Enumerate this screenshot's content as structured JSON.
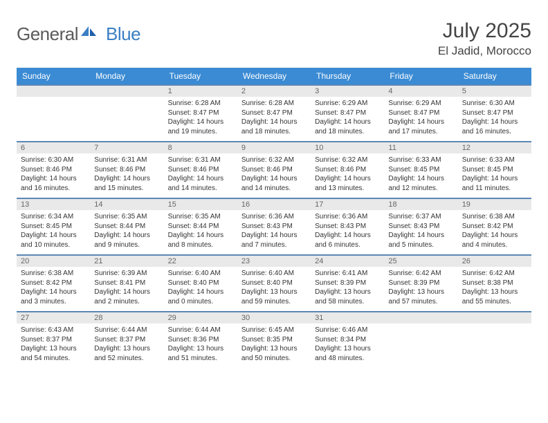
{
  "brand": {
    "word1": "General",
    "word2": "Blue"
  },
  "title": "July 2025",
  "location": "El Jadid, Morocco",
  "colors": {
    "header_bg": "#3b8bd4",
    "header_text": "#ffffff",
    "row_border": "#5b87b5",
    "daynum_bg": "#e9e9e9",
    "daynum_text": "#666666",
    "body_text": "#333333",
    "logo_gray": "#5a5a5a",
    "logo_blue": "#3b7fc4",
    "page_bg": "#ffffff"
  },
  "day_names": [
    "Sunday",
    "Monday",
    "Tuesday",
    "Wednesday",
    "Thursday",
    "Friday",
    "Saturday"
  ],
  "weeks": [
    [
      null,
      null,
      {
        "n": "1",
        "sunrise": "6:28 AM",
        "sunset": "8:47 PM",
        "daylight": "14 hours and 19 minutes."
      },
      {
        "n": "2",
        "sunrise": "6:28 AM",
        "sunset": "8:47 PM",
        "daylight": "14 hours and 18 minutes."
      },
      {
        "n": "3",
        "sunrise": "6:29 AM",
        "sunset": "8:47 PM",
        "daylight": "14 hours and 18 minutes."
      },
      {
        "n": "4",
        "sunrise": "6:29 AM",
        "sunset": "8:47 PM",
        "daylight": "14 hours and 17 minutes."
      },
      {
        "n": "5",
        "sunrise": "6:30 AM",
        "sunset": "8:47 PM",
        "daylight": "14 hours and 16 minutes."
      }
    ],
    [
      {
        "n": "6",
        "sunrise": "6:30 AM",
        "sunset": "8:46 PM",
        "daylight": "14 hours and 16 minutes."
      },
      {
        "n": "7",
        "sunrise": "6:31 AM",
        "sunset": "8:46 PM",
        "daylight": "14 hours and 15 minutes."
      },
      {
        "n": "8",
        "sunrise": "6:31 AM",
        "sunset": "8:46 PM",
        "daylight": "14 hours and 14 minutes."
      },
      {
        "n": "9",
        "sunrise": "6:32 AM",
        "sunset": "8:46 PM",
        "daylight": "14 hours and 14 minutes."
      },
      {
        "n": "10",
        "sunrise": "6:32 AM",
        "sunset": "8:46 PM",
        "daylight": "14 hours and 13 minutes."
      },
      {
        "n": "11",
        "sunrise": "6:33 AM",
        "sunset": "8:45 PM",
        "daylight": "14 hours and 12 minutes."
      },
      {
        "n": "12",
        "sunrise": "6:33 AM",
        "sunset": "8:45 PM",
        "daylight": "14 hours and 11 minutes."
      }
    ],
    [
      {
        "n": "13",
        "sunrise": "6:34 AM",
        "sunset": "8:45 PM",
        "daylight": "14 hours and 10 minutes."
      },
      {
        "n": "14",
        "sunrise": "6:35 AM",
        "sunset": "8:44 PM",
        "daylight": "14 hours and 9 minutes."
      },
      {
        "n": "15",
        "sunrise": "6:35 AM",
        "sunset": "8:44 PM",
        "daylight": "14 hours and 8 minutes."
      },
      {
        "n": "16",
        "sunrise": "6:36 AM",
        "sunset": "8:43 PM",
        "daylight": "14 hours and 7 minutes."
      },
      {
        "n": "17",
        "sunrise": "6:36 AM",
        "sunset": "8:43 PM",
        "daylight": "14 hours and 6 minutes."
      },
      {
        "n": "18",
        "sunrise": "6:37 AM",
        "sunset": "8:43 PM",
        "daylight": "14 hours and 5 minutes."
      },
      {
        "n": "19",
        "sunrise": "6:38 AM",
        "sunset": "8:42 PM",
        "daylight": "14 hours and 4 minutes."
      }
    ],
    [
      {
        "n": "20",
        "sunrise": "6:38 AM",
        "sunset": "8:42 PM",
        "daylight": "14 hours and 3 minutes."
      },
      {
        "n": "21",
        "sunrise": "6:39 AM",
        "sunset": "8:41 PM",
        "daylight": "14 hours and 2 minutes."
      },
      {
        "n": "22",
        "sunrise": "6:40 AM",
        "sunset": "8:40 PM",
        "daylight": "14 hours and 0 minutes."
      },
      {
        "n": "23",
        "sunrise": "6:40 AM",
        "sunset": "8:40 PM",
        "daylight": "13 hours and 59 minutes."
      },
      {
        "n": "24",
        "sunrise": "6:41 AM",
        "sunset": "8:39 PM",
        "daylight": "13 hours and 58 minutes."
      },
      {
        "n": "25",
        "sunrise": "6:42 AM",
        "sunset": "8:39 PM",
        "daylight": "13 hours and 57 minutes."
      },
      {
        "n": "26",
        "sunrise": "6:42 AM",
        "sunset": "8:38 PM",
        "daylight": "13 hours and 55 minutes."
      }
    ],
    [
      {
        "n": "27",
        "sunrise": "6:43 AM",
        "sunset": "8:37 PM",
        "daylight": "13 hours and 54 minutes."
      },
      {
        "n": "28",
        "sunrise": "6:44 AM",
        "sunset": "8:37 PM",
        "daylight": "13 hours and 52 minutes."
      },
      {
        "n": "29",
        "sunrise": "6:44 AM",
        "sunset": "8:36 PM",
        "daylight": "13 hours and 51 minutes."
      },
      {
        "n": "30",
        "sunrise": "6:45 AM",
        "sunset": "8:35 PM",
        "daylight": "13 hours and 50 minutes."
      },
      {
        "n": "31",
        "sunrise": "6:46 AM",
        "sunset": "8:34 PM",
        "daylight": "13 hours and 48 minutes."
      },
      null,
      null
    ]
  ]
}
